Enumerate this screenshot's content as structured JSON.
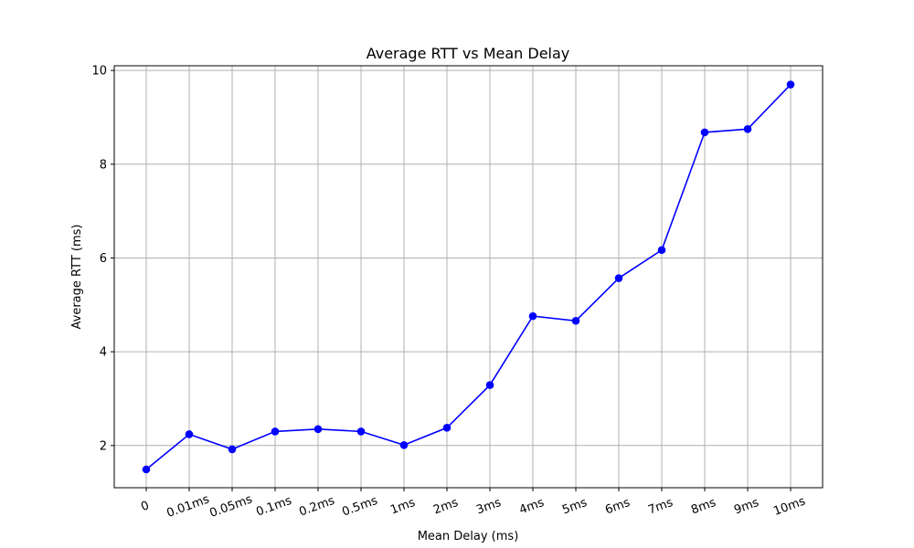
{
  "chart_data": {
    "type": "line",
    "title": "Average RTT vs Mean Delay",
    "xlabel": "Mean Delay (ms)",
    "ylabel": "Average RTT (ms)",
    "categories": [
      "0",
      "0.01ms",
      "0.05ms",
      "0.1ms",
      "0.2ms",
      "0.5ms",
      "1ms",
      "2ms",
      "3ms",
      "4ms",
      "5ms",
      "6ms",
      "7ms",
      "8ms",
      "9ms",
      "10ms"
    ],
    "series": [
      {
        "values": [
          1.49,
          2.24,
          1.92,
          2.3,
          2.35,
          2.3,
          2.01,
          2.38,
          3.29,
          4.76,
          4.66,
          5.57,
          6.17,
          8.68,
          8.75,
          9.7
        ]
      }
    ],
    "yticks": [
      2,
      4,
      6,
      8,
      10
    ],
    "ylim": [
      1.1,
      10.1
    ],
    "grid": true,
    "marker": "circle",
    "color": "#0000ff"
  }
}
